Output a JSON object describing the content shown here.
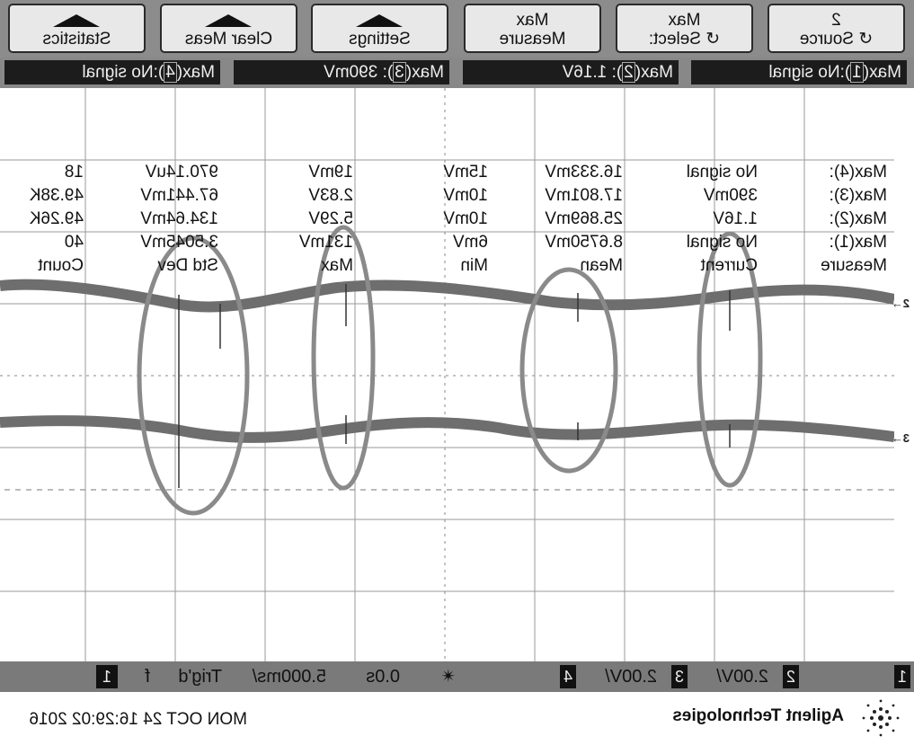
{
  "softkeys": [
    {
      "name": "source",
      "top": "2",
      "bottom": "Source",
      "icon": "rotate-icon"
    },
    {
      "name": "select",
      "top": "Max",
      "bottom": "Select:",
      "icon": "rotate-icon"
    },
    {
      "name": "measure",
      "top": "Max",
      "bottom": "Measure"
    },
    {
      "name": "settings",
      "bottom": "Settings",
      "icon": "up-arrow-icon"
    },
    {
      "name": "clear-meas",
      "bottom": "Clear Meas",
      "icon": "up-arrow-icon"
    },
    {
      "name": "statistics",
      "bottom": "Statistics",
      "icon": "up-arrow-icon"
    }
  ],
  "status": {
    "m1": {
      "prefix": "Max(",
      "ch": "1",
      "suffix": "):No signal"
    },
    "m2": {
      "prefix": "Max(",
      "ch": "2",
      "suffix": "): 1.16V"
    },
    "m3": {
      "prefix": "Max(",
      "ch": "3",
      "suffix": "): 390mV"
    },
    "m4": {
      "prefix": "Max(",
      "ch": "4",
      "suffix": "):No signal"
    }
  },
  "table": {
    "headers": [
      "Measure",
      "Current",
      "Mean",
      "Min",
      "Max",
      "Std Dev",
      "Count"
    ],
    "rows": [
      [
        "Max(1):",
        "No signal",
        "8.6750mV",
        "6mV",
        "131mV",
        "3.5045mV",
        "40"
      ],
      [
        "Max(2):",
        "1.16V",
        "25.869mV",
        "10mV",
        "5.29V",
        "134.64mV",
        "49.26K"
      ],
      [
        "Max(3):",
        "390mV",
        "17.801mV",
        "10mV",
        "2.83V",
        "67.441mV",
        "49.38K"
      ],
      [
        "Max(4):",
        "No signal",
        "16.333mV",
        "15mV",
        "19mV",
        "970.14uV",
        "18"
      ]
    ]
  },
  "markers": {
    "ch2": "2",
    "ch3": "3"
  },
  "scale": {
    "ch1": "1",
    "ch2": "2",
    "ch2_scale": "2.00V/",
    "ch3": "3",
    "ch3_scale": "2.00V/",
    "ch4": "4",
    "delay": "0.0s",
    "timebase": "5.000ms/",
    "trig": "Trig'd",
    "slope": "f",
    "trig_ch": "1"
  },
  "footer": {
    "brand": "Agilent Technologies",
    "datetime": "MON OCT 24 16:29:02 2016"
  },
  "colors": {
    "trace": "#6e6e6e",
    "highlight": "#8a8a8a",
    "grid": "#9a9a9a"
  }
}
